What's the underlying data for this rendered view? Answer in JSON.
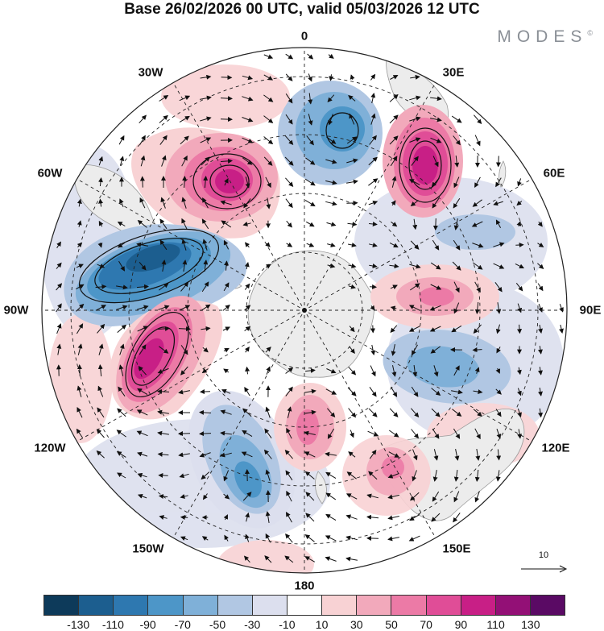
{
  "header": {
    "title": "Base 26/02/2026 00 UTC, valid 05/03/2026 12 UTC",
    "brand": "MODES",
    "brand_mark": "©"
  },
  "map": {
    "projection": "south-polar-stereographic",
    "longitude_labels": [
      {
        "id": "lon-0",
        "text": "0"
      },
      {
        "id": "lon-30e",
        "text": "30E"
      },
      {
        "id": "lon-60e",
        "text": "60E"
      },
      {
        "id": "lon-90e",
        "text": "90E"
      },
      {
        "id": "lon-120e",
        "text": "120E"
      },
      {
        "id": "lon-150e",
        "text": "150E"
      },
      {
        "id": "lon-180",
        "text": "180"
      },
      {
        "id": "lon-150w",
        "text": "150W"
      },
      {
        "id": "lon-120w",
        "text": "120W"
      },
      {
        "id": "lon-90w",
        "text": "90W"
      },
      {
        "id": "lon-60w",
        "text": "60W"
      },
      {
        "id": "lon-30w",
        "text": "30W"
      }
    ],
    "reference_vector": {
      "value": "10"
    },
    "anomaly_centers": [
      {
        "name": "negative-center-near-0",
        "sign": "negative",
        "peak": -70
      },
      {
        "name": "positive-center-near-35e",
        "sign": "positive",
        "peak": 110
      },
      {
        "name": "positive-center-near-40w",
        "sign": "positive",
        "peak": 90
      },
      {
        "name": "negative-center-near-75w",
        "sign": "negative",
        "peak": -110
      },
      {
        "name": "positive-center-near-105w",
        "sign": "positive",
        "peak": 110
      },
      {
        "name": "negative-center-near-155w",
        "sign": "negative",
        "peak": -70
      },
      {
        "name": "positive-center-near-170e",
        "sign": "positive",
        "peak": 70
      },
      {
        "name": "positive-center-near-140e",
        "sign": "positive",
        "peak": 50
      },
      {
        "name": "negative-center-near-110e",
        "sign": "negative",
        "peak": -50
      },
      {
        "name": "positive-center-near-85e",
        "sign": "positive",
        "peak": 50
      },
      {
        "name": "negative-center-near-55e",
        "sign": "negative",
        "peak": -30
      }
    ]
  },
  "colorbar": {
    "colors": [
      "#0d3a5a",
      "#1c5e8f",
      "#2e78b0",
      "#4d96c8",
      "#7fb0d8",
      "#b1c7e3",
      "#dcdfee",
      "#ffffff",
      "#f8d2d4",
      "#f2a9bb",
      "#ec7aa6",
      "#e04d97",
      "#c81f86",
      "#931076",
      "#5a0a64"
    ],
    "tick_labels": [
      "-130",
      "-110",
      "-90",
      "-70",
      "-50",
      "-30",
      "-10",
      "10",
      "30",
      "50",
      "70",
      "90",
      "110",
      "130"
    ]
  }
}
